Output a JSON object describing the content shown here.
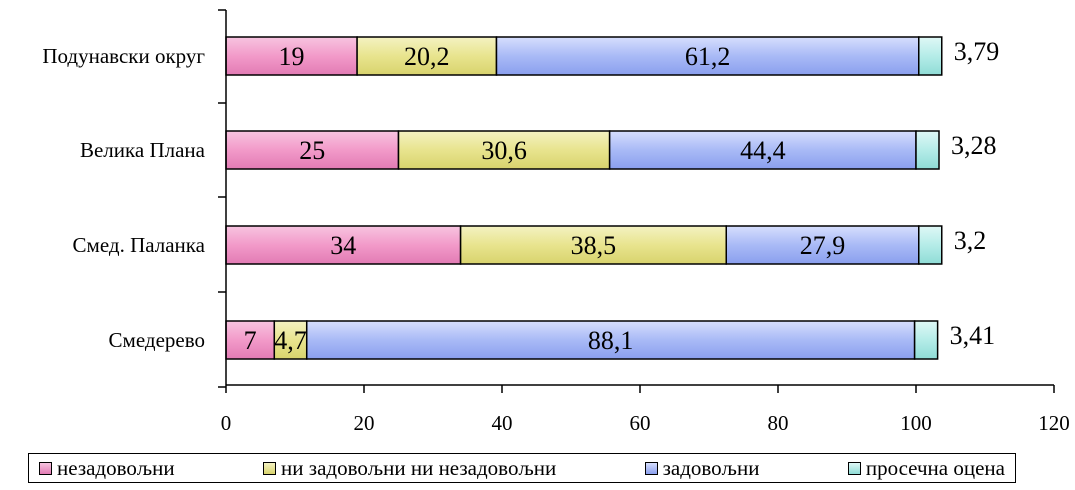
{
  "chart_data": {
    "type": "bar",
    "orientation": "horizontal",
    "stacked": true,
    "categories": [
      "Подунавски округ",
      "Велика Плана",
      "Смед. Паланка",
      "Смедерево"
    ],
    "series": [
      {
        "name": "незадовољни",
        "values": [
          19,
          25,
          34,
          7
        ],
        "labels": [
          "19",
          "25",
          "34",
          "7"
        ],
        "color": "#f29ac9"
      },
      {
        "name": "ни задовољни ни незадовољни",
        "values": [
          20.2,
          30.6,
          38.5,
          4.7
        ],
        "labels": [
          "20,2",
          "30,6",
          "38,5",
          "4,7"
        ],
        "color": "#e8e48e"
      },
      {
        "name": "задовољни",
        "values": [
          61.2,
          44.4,
          27.9,
          88.1
        ],
        "labels": [
          "61,2",
          "44,4",
          "27,9",
          "88,1"
        ],
        "color": "#a9baf6"
      },
      {
        "name": "просечна оцена",
        "values": [
          3.79,
          3.28,
          3.2,
          3.41
        ],
        "labels": [
          "3,79",
          "3,28",
          "3,2",
          "3,41"
        ],
        "color": "#b5ece8"
      }
    ],
    "xlim": [
      0,
      120
    ],
    "x_ticks": [
      "0",
      "20",
      "40",
      "60",
      "80",
      "100",
      "120"
    ],
    "grid": false,
    "legend_position": "bottom"
  }
}
